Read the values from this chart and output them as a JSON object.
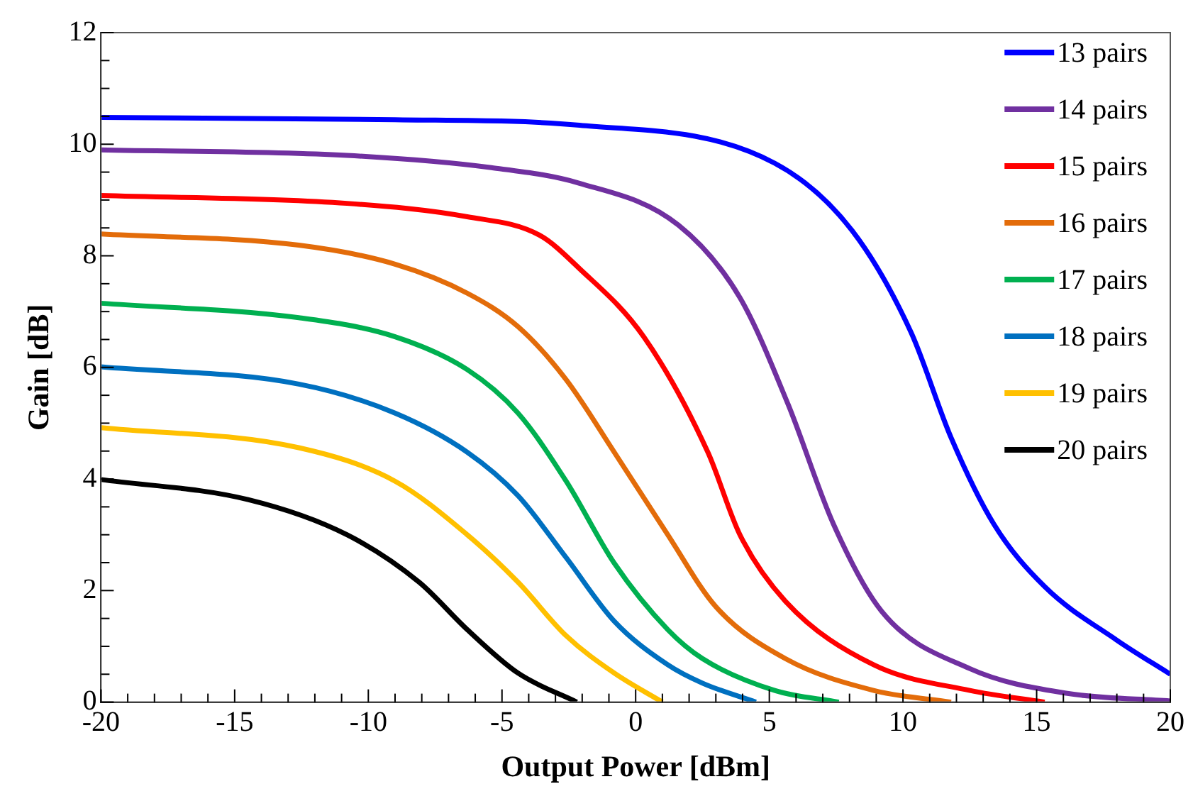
{
  "chart_data": {
    "type": "line",
    "xlabel": "Output Power [dBm]",
    "ylabel": "Gain [dB]",
    "xlim": [
      -20,
      20
    ],
    "ylim": [
      0,
      12
    ],
    "xticks": [
      -20,
      {
        "value": -19,
        "label": null
      },
      {
        "value": -18,
        "label": null
      },
      {
        "value": -17,
        "label": null
      },
      {
        "value": -16,
        "label": null
      },
      -15,
      {
        "value": -14,
        "label": null
      },
      {
        "value": -13,
        "label": null
      },
      {
        "value": -12,
        "label": null
      },
      {
        "value": -11,
        "label": null
      },
      -10,
      {
        "value": -9,
        "label": null
      },
      {
        "value": -8,
        "label": null
      },
      {
        "value": -7,
        "label": null
      },
      {
        "value": -6,
        "label": null
      },
      -5,
      {
        "value": -4,
        "label": null
      },
      {
        "value": -3,
        "label": null
      },
      {
        "value": -2,
        "label": null
      },
      {
        "value": -1,
        "label": null
      },
      0,
      {
        "value": 1,
        "label": null
      },
      {
        "value": 2,
        "label": null
      },
      {
        "value": 3,
        "label": null
      },
      {
        "value": 4,
        "label": null
      },
      5,
      {
        "value": 6,
        "label": null
      },
      {
        "value": 7,
        "label": null
      },
      {
        "value": 8,
        "label": null
      },
      {
        "value": 9,
        "label": null
      },
      10,
      {
        "value": 11,
        "label": null
      },
      {
        "value": 12,
        "label": null
      },
      {
        "value": 13,
        "label": null
      },
      {
        "value": 14,
        "label": null
      },
      15,
      {
        "value": 16,
        "label": null
      },
      {
        "value": 17,
        "label": null
      },
      {
        "value": 18,
        "label": null
      },
      {
        "value": 19,
        "label": null
      },
      20
    ],
    "yticks": [
      0,
      {
        "value": 0.5,
        "label": null
      },
      {
        "value": 1,
        "label": null
      },
      {
        "value": 1.5,
        "label": null
      },
      2,
      {
        "value": 2.5,
        "label": null
      },
      {
        "value": 3,
        "label": null
      },
      {
        "value": 3.5,
        "label": null
      },
      4,
      {
        "value": 4.5,
        "label": null
      },
      {
        "value": 5,
        "label": null
      },
      {
        "value": 5.5,
        "label": null
      },
      6,
      {
        "value": 6.5,
        "label": null
      },
      {
        "value": 7,
        "label": null
      },
      {
        "value": 7.5,
        "label": null
      },
      8,
      {
        "value": 8.5,
        "label": null
      },
      {
        "value": 9,
        "label": null
      },
      {
        "value": 9.5,
        "label": null
      },
      10,
      {
        "value": 10.5,
        "label": null
      },
      {
        "value": 11,
        "label": null
      },
      {
        "value": 11.5,
        "label": null
      },
      12
    ],
    "grid": false,
    "legend": "top right",
    "marker": "none",
    "line_style": "solid",
    "series": [
      {
        "name": "13 pairs",
        "color": "#0000ff",
        "x": [
          -20,
          -9,
          -2.1,
          5.2,
          8.1,
          10.3,
          11.8,
          13.4,
          15.3,
          18,
          20
        ],
        "values": [
          10.48,
          10.44,
          10.34,
          9.66,
          8.45,
          6.63,
          4.74,
          3.19,
          2.07,
          1.11,
          0.5
        ]
      },
      {
        "name": "14 pairs",
        "color": "#7030a0",
        "x": [
          -20,
          -10.8,
          -5.4,
          -2.1,
          1.6,
          3.9,
          5.7,
          7.4,
          9.2,
          12.5,
          16.1,
          20
        ],
        "values": [
          9.9,
          9.8,
          9.58,
          9.3,
          8.55,
          7.25,
          5.34,
          3.19,
          1.63,
          0.6,
          0.16,
          0.02
        ]
      },
      {
        "name": "15 pairs",
        "color": "#ff0000",
        "x": [
          -20,
          -10.8,
          -6.3,
          -3.6,
          -2.1,
          0.3,
          2.7,
          3.9,
          5.6,
          8.9,
          12.5,
          15.3
        ],
        "values": [
          9.08,
          8.94,
          8.7,
          8.37,
          7.77,
          6.55,
          4.48,
          3.0,
          1.81,
          0.67,
          0.21,
          0
        ]
      },
      {
        "name": "16 pairs",
        "color": "#e36c0a",
        "x": [
          -20,
          -12.6,
          -9,
          -6.3,
          -4.4,
          -2.6,
          -0.8,
          1.2,
          3,
          5.6,
          8.9,
          11.8
        ],
        "values": [
          8.39,
          8.19,
          7.85,
          7.33,
          6.73,
          5.78,
          4.48,
          3.0,
          1.71,
          0.78,
          0.21,
          0
        ]
      },
      {
        "name": "17 pairs",
        "color": "#00b050",
        "x": [
          -20,
          -12.6,
          -9,
          -6.3,
          -4.4,
          -2.6,
          -0.8,
          1.2,
          2.5,
          5.2,
          7.6
        ],
        "values": [
          7.15,
          6.89,
          6.55,
          5.96,
          5.18,
          3.96,
          2.49,
          1.3,
          0.78,
          0.21,
          0
        ]
      },
      {
        "name": "18 pairs",
        "color": "#0070c0",
        "x": [
          -20,
          -12.6,
          -9,
          -6.3,
          -4.4,
          -2.6,
          -0.8,
          1.2,
          2.5,
          4.5
        ],
        "values": [
          6.01,
          5.7,
          5.18,
          4.48,
          3.7,
          2.59,
          1.45,
          0.67,
          0.34,
          0
        ]
      },
      {
        "name": "19 pairs",
        "color": "#ffc000",
        "x": [
          -20,
          -12.6,
          -9,
          -6.3,
          -4.4,
          -2.6,
          -0.8,
          1
        ],
        "values": [
          4.92,
          4.56,
          3.96,
          3.0,
          2.15,
          1.19,
          0.52,
          0
        ]
      },
      {
        "name": "20 pairs",
        "color": "#000000",
        "x": [
          -20,
          -14.5,
          -10.8,
          -8.1,
          -6.3,
          -4.4,
          -2.2
        ],
        "values": [
          3.99,
          3.63,
          3.0,
          2.15,
          1.3,
          0.52,
          0
        ]
      }
    ]
  }
}
